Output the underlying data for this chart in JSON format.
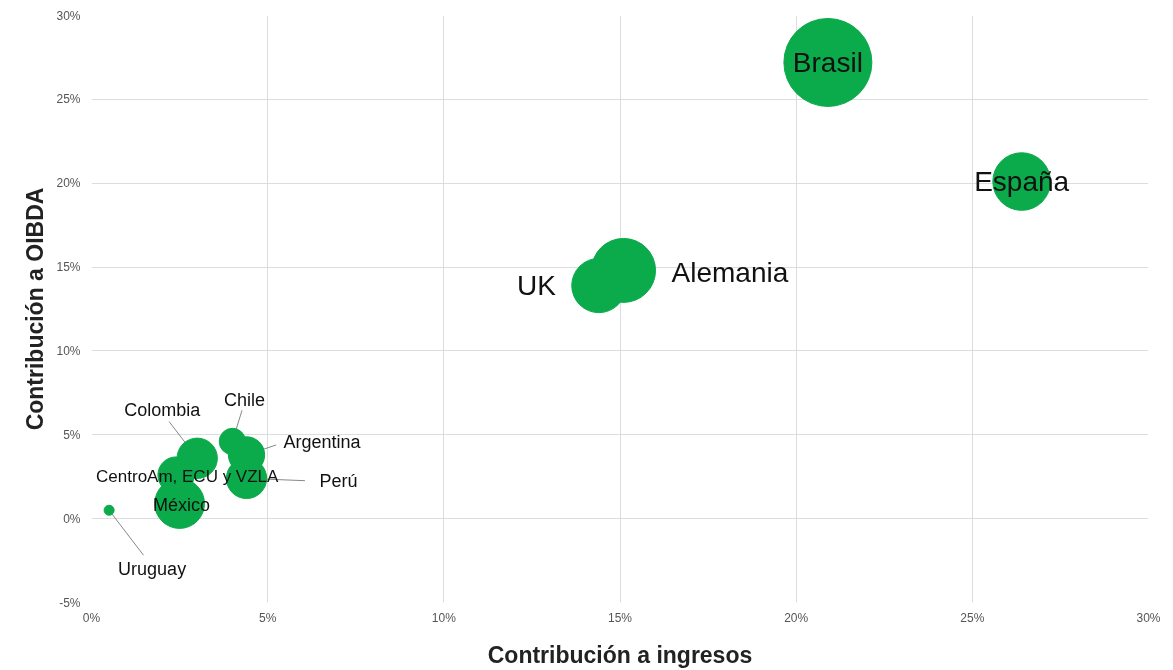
{
  "chart_data": {
    "type": "bubble",
    "xlabel": "Contribución a ingresos",
    "ylabel": "Contribución a OIBDA",
    "xlim": [
      0,
      30
    ],
    "ylim": [
      -5,
      30
    ],
    "xticks": [
      {
        "value": 0,
        "label": "0%"
      },
      {
        "value": 5,
        "label": "5%"
      },
      {
        "value": 10,
        "label": "10%"
      },
      {
        "value": 15,
        "label": "15%"
      },
      {
        "value": 20,
        "label": "20%"
      },
      {
        "value": 25,
        "label": "25%"
      },
      {
        "value": 30,
        "label": "30%"
      }
    ],
    "yticks": [
      {
        "value": -5,
        "label": "-5%"
      },
      {
        "value": 0,
        "label": "0%"
      },
      {
        "value": 5,
        "label": "5%"
      },
      {
        "value": 10,
        "label": "10%"
      },
      {
        "value": 15,
        "label": "15%"
      },
      {
        "value": 20,
        "label": "20%"
      },
      {
        "value": 25,
        "label": "25%"
      },
      {
        "value": 30,
        "label": "30%"
      }
    ],
    "grid": true,
    "series": [
      {
        "name": "Brasil",
        "color": "#0bab4b",
        "x": [
          20.9
        ],
        "values": [
          27.2
        ],
        "sizes": [
          1
        ]
      },
      {
        "name": "España",
        "color": "#0bab4b",
        "x": [
          26.4
        ],
        "values": [
          20.1
        ],
        "sizes": [
          0.43
        ]
      },
      {
        "name": "Alemania",
        "color": "#0bab4b",
        "x": [
          15.1
        ],
        "values": [
          14.8
        ],
        "sizes": [
          0.53
        ]
      },
      {
        "name": "UK",
        "color": "#0bab4b",
        "x": [
          14.4
        ],
        "values": [
          13.9
        ],
        "sizes": [
          0.38
        ]
      },
      {
        "name": "Chile",
        "color": "#0bab4b",
        "x": [
          4.0
        ],
        "values": [
          4.6
        ],
        "sizes": [
          0.09
        ]
      },
      {
        "name": "Argentina",
        "color": "#0bab4b",
        "x": [
          4.4
        ],
        "values": [
          3.8
        ],
        "sizes": [
          0.17
        ]
      },
      {
        "name": "Perú",
        "color": "#0bab4b",
        "x": [
          4.4
        ],
        "values": [
          2.4
        ],
        "sizes": [
          0.21
        ]
      },
      {
        "name": "Colombia",
        "color": "#0bab4b",
        "x": [
          3.0
        ],
        "values": [
          3.6
        ],
        "sizes": [
          0.21
        ]
      },
      {
        "name": "CentroAm, ECU y VZLA",
        "color": "#0bab4b",
        "x": [
          2.4
        ],
        "values": [
          2.6
        ],
        "sizes": [
          0.17
        ]
      },
      {
        "name": "México",
        "color": "#0bab4b",
        "x": [
          2.5
        ],
        "values": [
          0.9
        ],
        "sizes": [
          0.32
        ]
      },
      {
        "name": "Uruguay",
        "color": "#0bab4b",
        "x": [
          0.5
        ],
        "values": [
          0.5
        ],
        "sizes": [
          0.013
        ]
      }
    ]
  }
}
